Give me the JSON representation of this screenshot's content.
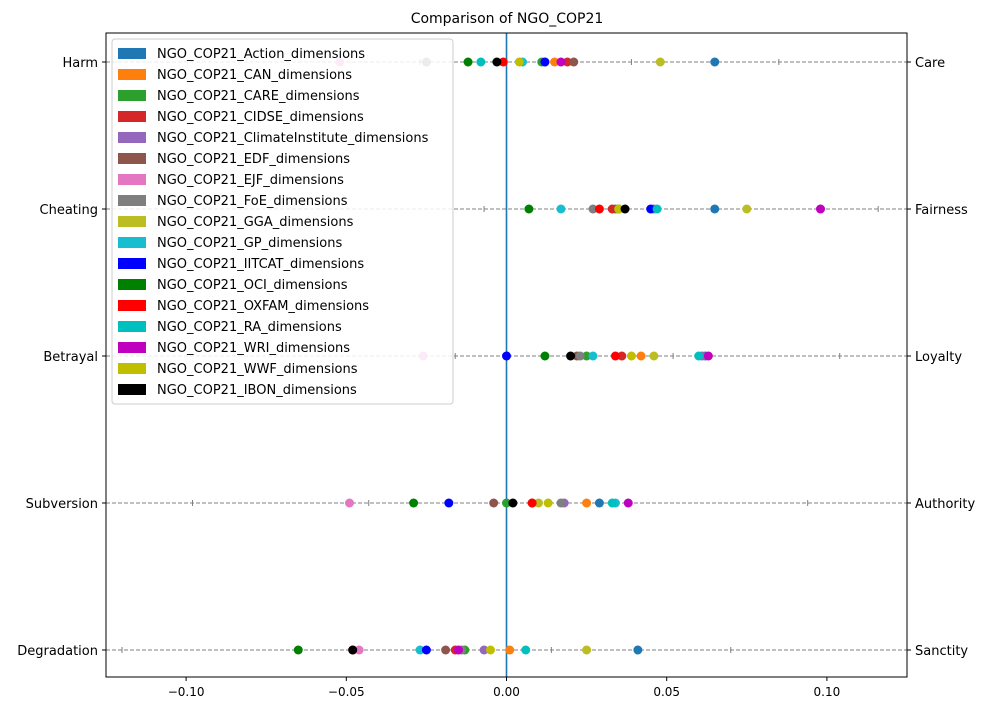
{
  "chart_data": {
    "type": "scatter",
    "title": "Comparison of NGO_COP21",
    "xlabel": "",
    "ylabel": "",
    "xlim": [
      -0.125,
      0.125
    ],
    "xticks": [
      -0.1,
      -0.05,
      0.0,
      0.05,
      0.1
    ],
    "x_tick_labels": [
      "−0.10",
      "−0.05",
      "0.00",
      "0.05",
      "0.10"
    ],
    "grid": false,
    "legend_position": "top-left",
    "zero_line_color": "#1f77b4",
    "dimensions": [
      {
        "left": "Harm",
        "right": "Care"
      },
      {
        "left": "Cheating",
        "right": "Fairness"
      },
      {
        "left": "Betrayal",
        "right": "Loyalty"
      },
      {
        "left": "Subversion",
        "right": "Authority"
      },
      {
        "left": "Degradation",
        "right": "Sanctity"
      }
    ],
    "dimension_ticks": [
      [
        -0.027,
        0.039,
        0.085
      ],
      [
        -0.007,
        0.064,
        0.116
      ],
      [
        -0.016,
        0.052,
        0.104
      ],
      [
        -0.098,
        -0.043,
        0.094
      ],
      [
        -0.12,
        -0.064,
        0.014,
        0.07
      ]
    ],
    "series": [
      {
        "name": "NGO_COP21_Action_dimensions",
        "color": "#1f77b4",
        "values": [
          0.065,
          0.065,
          0.062,
          0.029,
          0.041
        ]
      },
      {
        "name": "NGO_COP21_CAN_dimensions",
        "color": "#ff7f0e",
        "values": [
          0.015,
          0.035,
          0.042,
          0.025,
          0.001
        ]
      },
      {
        "name": "NGO_COP21_CARE_dimensions",
        "color": "#2ca02c",
        "values": [
          0.011,
          0.034,
          0.025,
          -0.0,
          -0.013
        ]
      },
      {
        "name": "NGO_COP21_CIDSE_dimensions",
        "color": "#d62728",
        "values": [
          0.019,
          0.033,
          0.036,
          0.008,
          -0.016
        ]
      },
      {
        "name": "NGO_COP21_ClimateInstitute_dimensions",
        "color": "#9467bd",
        "values": [
          0.012,
          0.046,
          0.061,
          0.018,
          -0.007
        ]
      },
      {
        "name": "NGO_COP21_EDF_dimensions",
        "color": "#8c564b",
        "values": [
          0.021,
          0.035,
          0.022,
          -0.004,
          -0.019
        ]
      },
      {
        "name": "NGO_COP21_EJF_dimensions",
        "color": "#e377c2",
        "values": [
          -0.052,
          0.098,
          -0.026,
          -0.049,
          -0.046
        ]
      },
      {
        "name": "NGO_COP21_FoE_dimensions",
        "color": "#7f7f7f",
        "values": [
          -0.025,
          0.027,
          0.023,
          0.017,
          -0.014
        ]
      },
      {
        "name": "NGO_COP21_GGA_dimensions",
        "color": "#bcbd22",
        "values": [
          0.048,
          0.075,
          0.046,
          0.01,
          0.025
        ]
      },
      {
        "name": "NGO_COP21_GP_dimensions",
        "color": "#17becf",
        "values": [
          0.005,
          0.017,
          0.027,
          0.034,
          -0.027
        ]
      },
      {
        "name": "NGO_COP21_IITCAT_dimensions",
        "color": "#0000ff",
        "values": [
          0.012,
          0.045,
          0.0,
          -0.018,
          -0.025
        ]
      },
      {
        "name": "NGO_COP21_OCI_dimensions",
        "color": "#008000",
        "values": [
          -0.012,
          0.007,
          0.012,
          -0.029,
          -0.065
        ]
      },
      {
        "name": "NGO_COP21_OXFAM_dimensions",
        "color": "#ff0000",
        "values": [
          -0.001,
          0.029,
          0.034,
          0.008,
          -0.048
        ]
      },
      {
        "name": "NGO_COP21_RA_dimensions",
        "color": "#00bfbf",
        "values": [
          -0.008,
          0.047,
          0.06,
          0.033,
          0.006
        ]
      },
      {
        "name": "NGO_COP21_WRI_dimensions",
        "color": "#bf00bf",
        "values": [
          0.017,
          0.098,
          0.063,
          0.038,
          -0.015
        ]
      },
      {
        "name": "NGO_COP21_WWF_dimensions",
        "color": "#bfbf00",
        "values": [
          0.004,
          0.035,
          0.039,
          0.013,
          -0.005
        ]
      },
      {
        "name": "NGO_COP21_IBON_dimensions",
        "color": "#000000",
        "values": [
          -0.003,
          0.037,
          0.02,
          0.002,
          -0.048
        ]
      }
    ]
  }
}
